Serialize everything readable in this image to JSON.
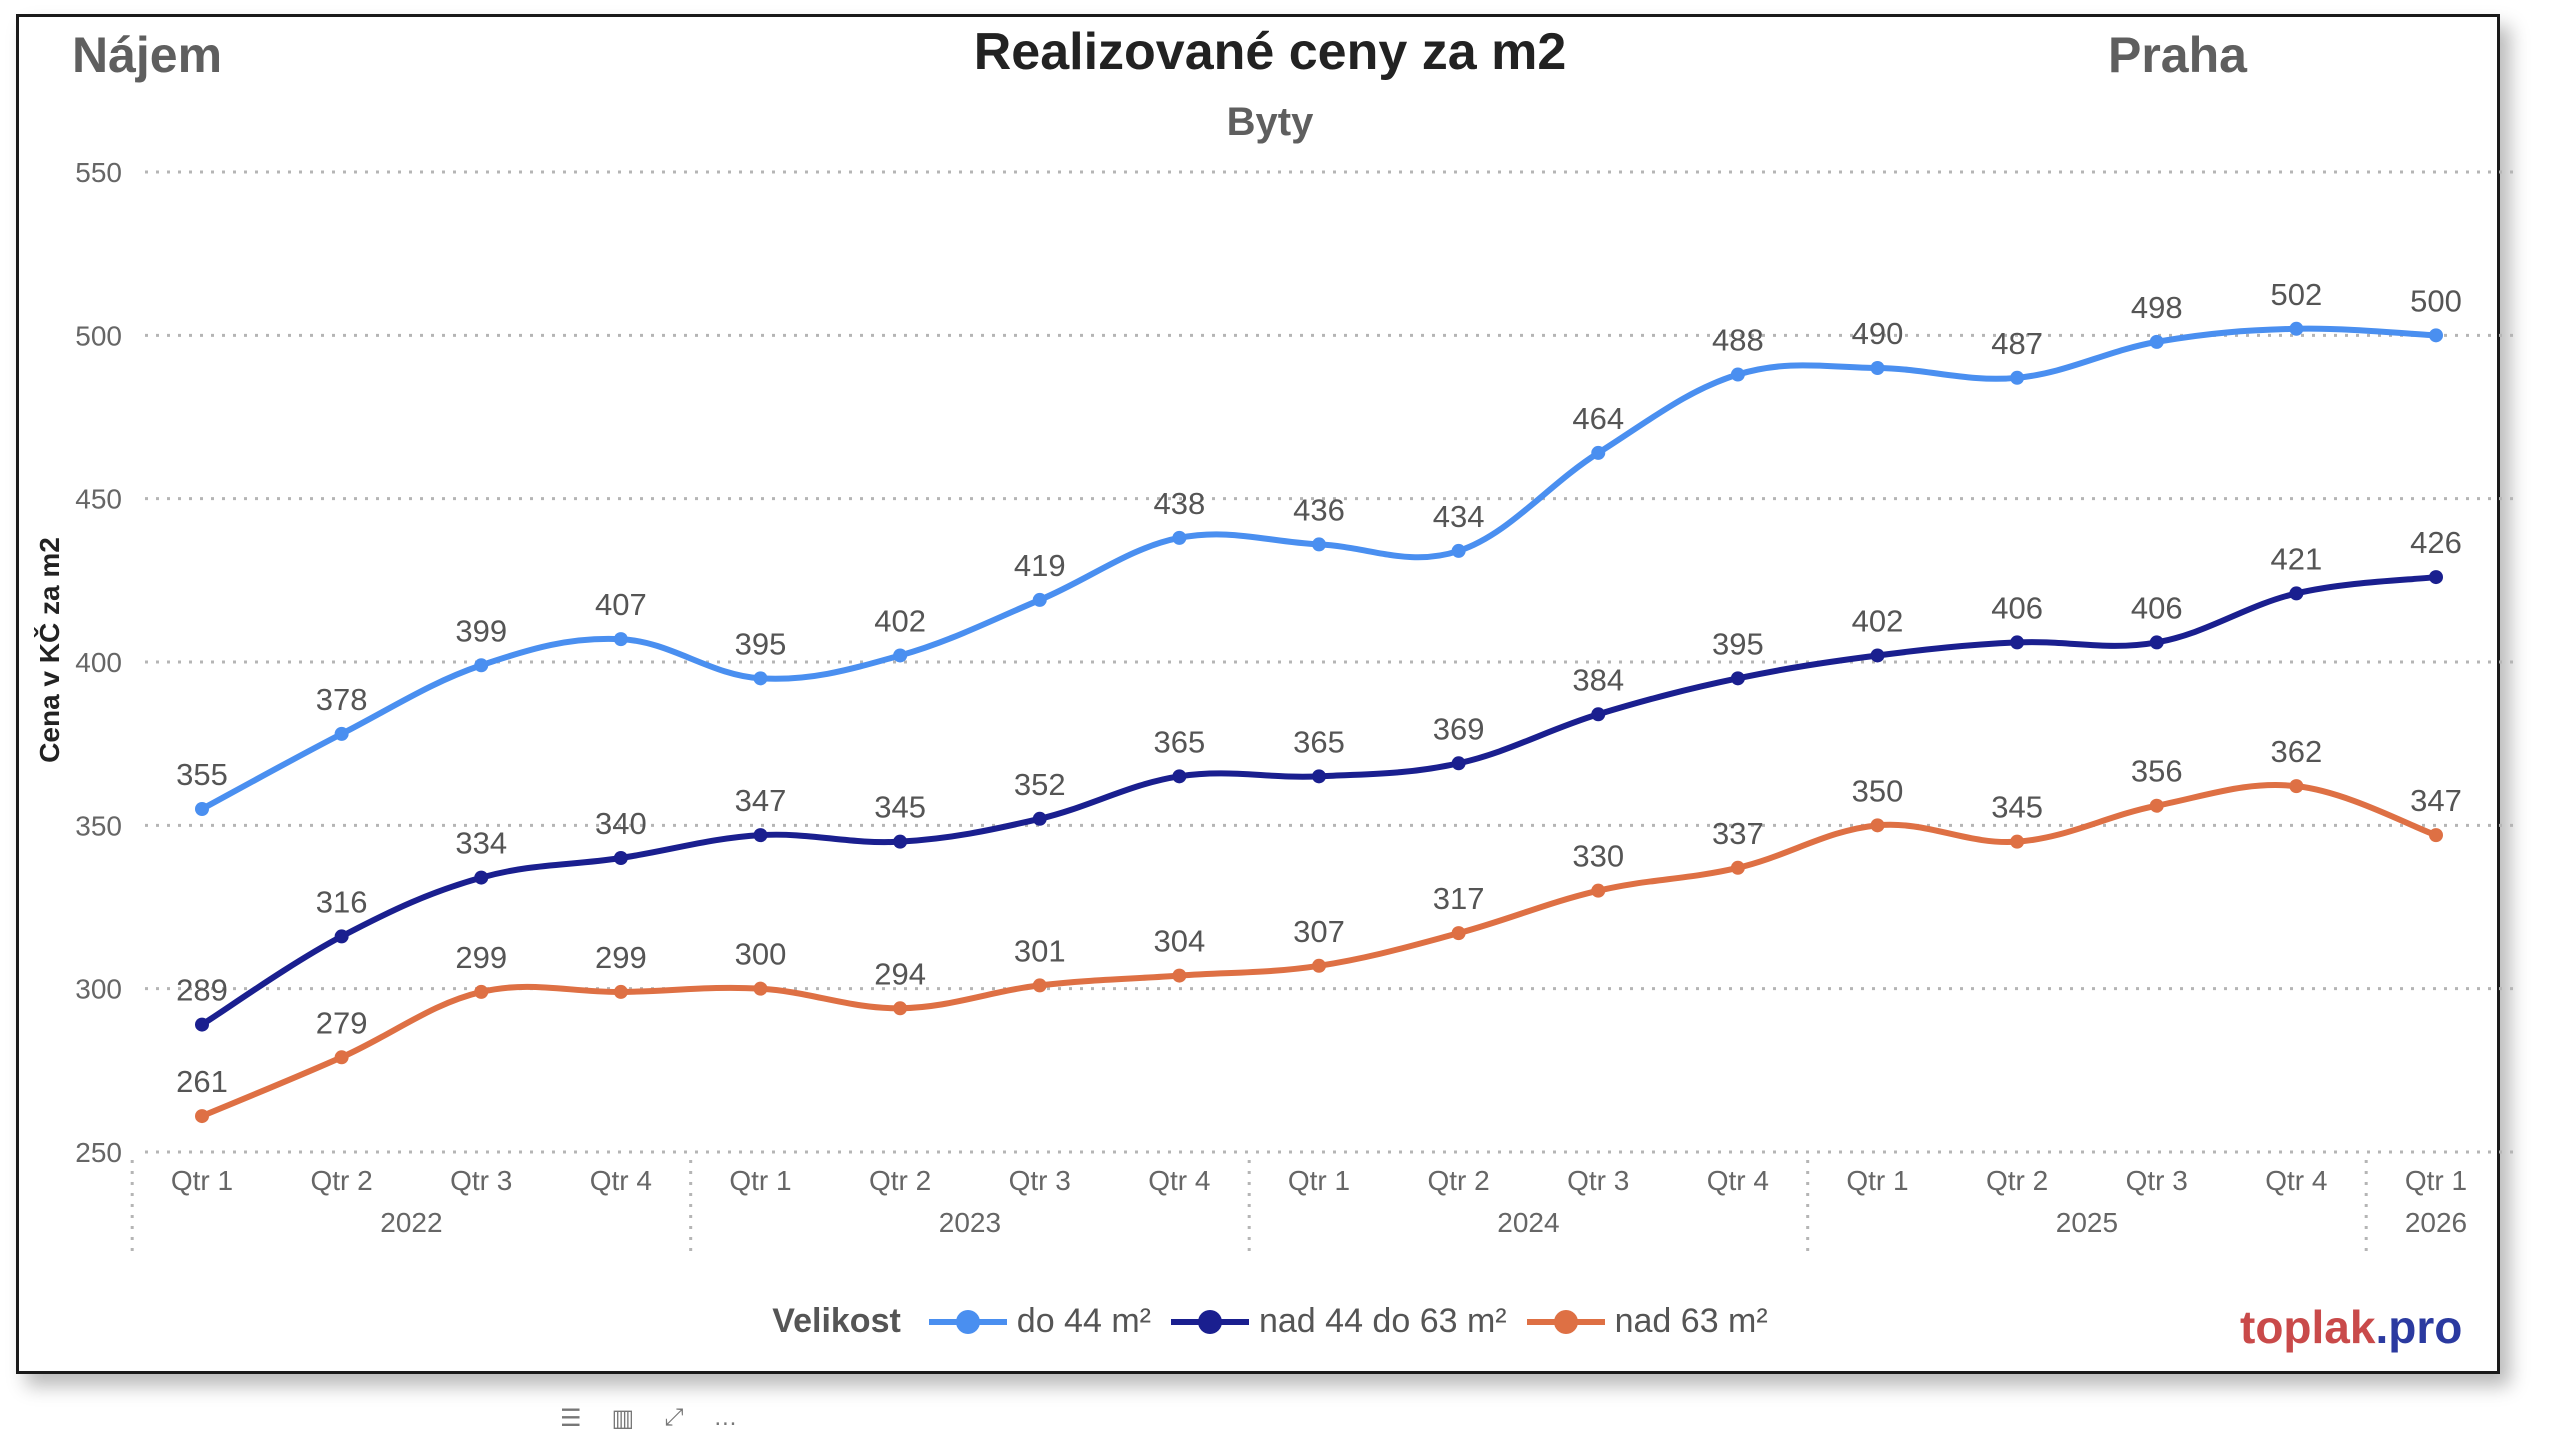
{
  "header": {
    "left_label": "Nájem",
    "right_label": "Praha",
    "brand_part1": "toplak",
    "brand_part2": ".pro"
  },
  "legend": {
    "title": "Velikost"
  },
  "toolbar_icons": [
    "menu-icon",
    "chart-icon",
    "expand-icon",
    "more-icon"
  ],
  "chart_data": {
    "type": "line",
    "title": "Realizované ceny za m2",
    "subtitle": "Byty",
    "xlabel": "",
    "ylabel": "Cena v KČ za m2",
    "ylim": [
      250,
      550
    ],
    "yticks": [
      550,
      500,
      450,
      400,
      350,
      300,
      250
    ],
    "grid": true,
    "legend_position": "bottom",
    "categories": [
      "Qtr 1",
      "Qtr 2",
      "Qtr 3",
      "Qtr 4",
      "Qtr 1",
      "Qtr 2",
      "Qtr 3",
      "Qtr 4",
      "Qtr 1",
      "Qtr 2",
      "Qtr 3",
      "Qtr 4",
      "Qtr 1",
      "Qtr 2",
      "Qtr 3",
      "Qtr 4",
      "Qtr 1"
    ],
    "year_groups": [
      {
        "label": "2022",
        "count": 4
      },
      {
        "label": "2023",
        "count": 4
      },
      {
        "label": "2024",
        "count": 4
      },
      {
        "label": "2025",
        "count": 4
      },
      {
        "label": "2026",
        "count": 1
      }
    ],
    "series": [
      {
        "name": "do 44 m²",
        "color": "#4a8ff0",
        "values": [
          355,
          378,
          399,
          407,
          395,
          402,
          419,
          438,
          436,
          434,
          464,
          488,
          490,
          487,
          498,
          502,
          500
        ]
      },
      {
        "name": "nad 44 do 63 m²",
        "color": "#1a1f8f",
        "values": [
          289,
          316,
          334,
          340,
          347,
          345,
          352,
          365,
          365,
          369,
          384,
          395,
          402,
          406,
          406,
          421,
          426
        ]
      },
      {
        "name": "nad 63 m²",
        "color": "#de7044",
        "values": [
          261,
          279,
          299,
          299,
          300,
          294,
          301,
          304,
          307,
          317,
          330,
          337,
          350,
          345,
          356,
          362,
          347
        ]
      }
    ]
  }
}
